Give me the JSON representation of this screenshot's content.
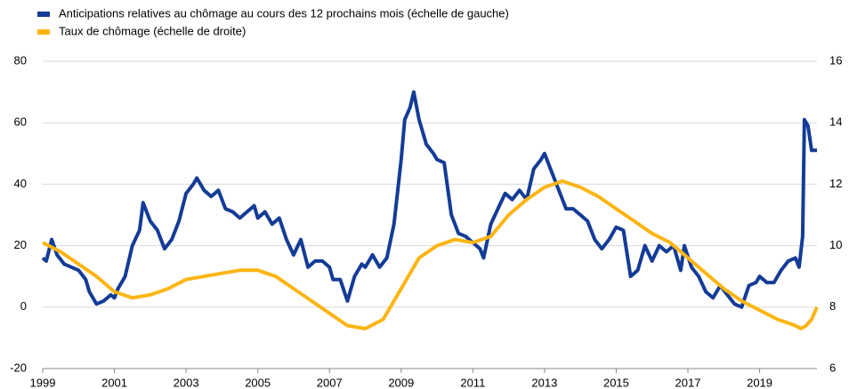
{
  "chart_data": {
    "type": "line",
    "xlim": [
      1999,
      2020.6
    ],
    "xticks": [
      1999,
      2001,
      2003,
      2005,
      2007,
      2009,
      2011,
      2013,
      2015,
      2017,
      2019
    ],
    "ylim": [
      -20,
      80
    ],
    "yticks": [
      -20,
      0,
      20,
      40,
      60,
      80
    ],
    "y2lim": [
      6,
      16
    ],
    "y2ticks": [
      6,
      8,
      10,
      12,
      14,
      16
    ],
    "grid": true,
    "legend": "top-left",
    "series": [
      {
        "name": "Anticipations  relatives au chômage au cours des 12 prochains  mois (échelle de gauche)",
        "color": "#143c96",
        "x": [
          1999.0,
          1999.1,
          1999.25,
          1999.4,
          1999.6,
          1999.8,
          2000.0,
          2000.2,
          2000.3,
          2000.5,
          2000.7,
          2000.9,
          2001.0,
          2001.1,
          2001.3,
          2001.5,
          2001.7,
          2001.8,
          2002.0,
          2002.2,
          2002.4,
          2002.6,
          2002.8,
          2003.0,
          2003.2,
          2003.3,
          2003.5,
          2003.7,
          2003.9,
          2004.1,
          2004.3,
          2004.5,
          2004.7,
          2004.9,
          2005.0,
          2005.2,
          2005.4,
          2005.6,
          2005.8,
          2006.0,
          2006.2,
          2006.4,
          2006.6,
          2006.8,
          2007.0,
          2007.1,
          2007.3,
          2007.5,
          2007.7,
          2007.9,
          2008.0,
          2008.2,
          2008.4,
          2008.6,
          2008.8,
          2009.0,
          2009.1,
          2009.25,
          2009.35,
          2009.5,
          2009.7,
          2009.9,
          2010.0,
          2010.2,
          2010.4,
          2010.6,
          2010.8,
          2011.0,
          2011.2,
          2011.3,
          2011.5,
          2011.7,
          2011.9,
          2012.1,
          2012.3,
          2012.5,
          2012.7,
          2012.9,
          2013.0,
          2013.2,
          2013.4,
          2013.6,
          2013.8,
          2014.0,
          2014.2,
          2014.4,
          2014.6,
          2014.8,
          2015.0,
          2015.2,
          2015.4,
          2015.6,
          2015.8,
          2016.0,
          2016.2,
          2016.4,
          2016.6,
          2016.8,
          2016.9,
          2017.1,
          2017.3,
          2017.5,
          2017.7,
          2017.9,
          2018.1,
          2018.3,
          2018.5,
          2018.7,
          2018.9,
          2019.0,
          2019.2,
          2019.4,
          2019.6,
          2019.8,
          2020.0,
          2020.1,
          2020.2,
          2020.25,
          2020.35,
          2020.45,
          2020.6
        ],
        "values": [
          16,
          15,
          22,
          17,
          14,
          13,
          12,
          9,
          5,
          1,
          2,
          4,
          3,
          6,
          10,
          20,
          25,
          34,
          28,
          25,
          19,
          22,
          28,
          37,
          40,
          42,
          38,
          36,
          38,
          32,
          31,
          29,
          31,
          33,
          29,
          31,
          27,
          29,
          22,
          17,
          22,
          13,
          15,
          15,
          13,
          9,
          9,
          2,
          10,
          14,
          13,
          17,
          13,
          16,
          27,
          48,
          61,
          65,
          70,
          61,
          53,
          50,
          48,
          47,
          30,
          24,
          23,
          21,
          19,
          16,
          27,
          32,
          37,
          35,
          38,
          35,
          45,
          48,
          50,
          44,
          38,
          32,
          32,
          30,
          28,
          22,
          19,
          22,
          26,
          25,
          10,
          12,
          20,
          15,
          20,
          18,
          20,
          12,
          20,
          13,
          10,
          5,
          3,
          7,
          4,
          1,
          0,
          7,
          8,
          10,
          8,
          8,
          12,
          15,
          16,
          13,
          23,
          61,
          59,
          51,
          51
        ]
      },
      {
        "name": "Taux de chômage (échelle de droite)",
        "color": "#fbb513",
        "axis": "y2",
        "x": [
          1999.0,
          1999.5,
          2000.0,
          2000.5,
          2001.0,
          2001.5,
          2002.0,
          2002.5,
          2003.0,
          2003.5,
          2004.0,
          2004.5,
          2005.0,
          2005.5,
          2006.0,
          2006.5,
          2007.0,
          2007.5,
          2008.0,
          2008.5,
          2009.0,
          2009.5,
          2010.0,
          2010.5,
          2011.0,
          2011.5,
          2012.0,
          2012.5,
          2013.0,
          2013.5,
          2014.0,
          2014.5,
          2015.0,
          2015.5,
          2016.0,
          2016.5,
          2017.0,
          2017.5,
          2018.0,
          2018.5,
          2019.0,
          2019.5,
          2020.0,
          2020.15,
          2020.3,
          2020.45,
          2020.6
        ],
        "values": [
          10.1,
          9.8,
          9.4,
          9.0,
          8.5,
          8.3,
          8.4,
          8.6,
          8.9,
          9.0,
          9.1,
          9.2,
          9.2,
          9.0,
          8.6,
          8.2,
          7.8,
          7.4,
          7.3,
          7.6,
          8.6,
          9.6,
          10.0,
          10.2,
          10.1,
          10.3,
          11.0,
          11.5,
          11.9,
          12.1,
          11.9,
          11.6,
          11.2,
          10.8,
          10.4,
          10.1,
          9.6,
          9.1,
          8.6,
          8.2,
          7.9,
          7.6,
          7.4,
          7.3,
          7.4,
          7.6,
          8.0
        ]
      }
    ]
  }
}
